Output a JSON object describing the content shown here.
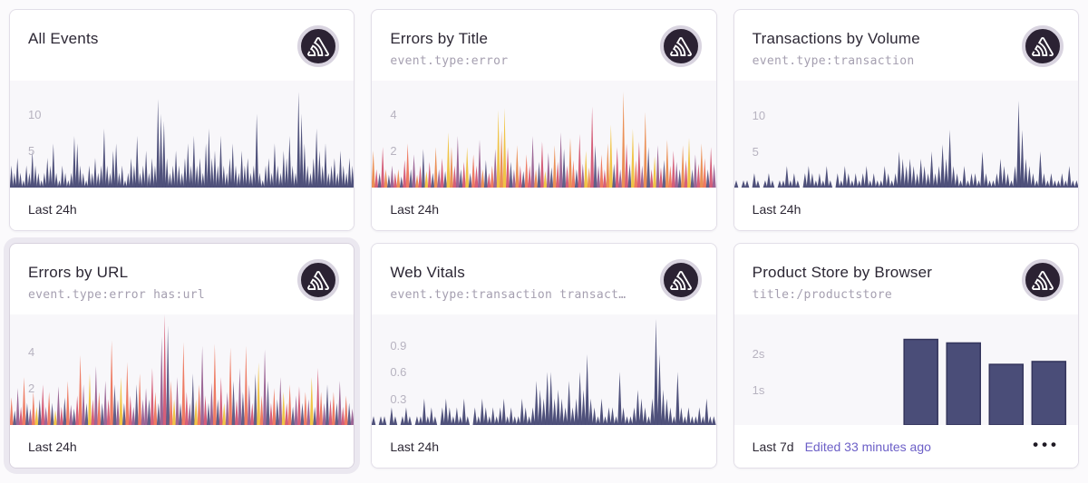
{
  "page": {
    "background": "#fbfafc"
  },
  "theme": {
    "card_bg": "#ffffff",
    "card_border": "#e2dee8",
    "plot_bg": "#f8f7fa",
    "title_color": "#2c2734",
    "subtitle_color": "#a59fb0",
    "tick_color": "#b7b3c0",
    "link_color": "#6c5fc7",
    "badge_bg": "#2b2233",
    "badge_ring": "#d9d4e0",
    "navy": "#464874",
    "highlight_ring": "#ebe8f0",
    "palette": [
      "#e8823f",
      "#cf4a68",
      "#eebd2e",
      "#4b4a78",
      "#8e5287",
      "#ec6a4d"
    ]
  },
  "logo_icon": "sentry-logo-icon",
  "cards": [
    {
      "title": "All Events",
      "subtitle": "",
      "footer": "Last 24h",
      "chart": {
        "type": "spikes",
        "ymax": 14.5,
        "color": "#464874",
        "ticks": [
          {
            "value": 10,
            "label": "10"
          },
          {
            "value": 5,
            "label": "5"
          }
        ],
        "values": [
          3,
          2,
          4,
          2,
          1,
          3,
          2,
          5,
          3,
          2,
          1,
          2,
          4,
          3,
          6,
          2,
          1,
          3,
          2,
          1,
          2,
          7,
          6,
          3,
          2,
          1,
          3,
          2,
          4,
          2,
          3,
          8,
          3,
          2,
          5,
          6,
          2,
          3,
          1,
          2,
          4,
          3,
          7,
          2,
          3,
          5,
          2,
          4,
          3,
          12,
          10,
          9,
          4,
          2,
          3,
          5,
          3,
          2,
          4,
          6,
          3,
          7,
          3,
          4,
          2,
          6,
          8,
          4,
          5,
          3,
          7,
          3,
          2,
          4,
          6,
          3,
          2,
          5,
          3,
          4,
          2,
          3,
          10,
          2,
          1,
          3,
          4,
          2,
          6,
          3,
          2,
          5,
          4,
          7,
          3,
          2,
          13,
          10,
          6,
          3,
          2,
          4,
          8,
          5,
          3,
          6,
          2,
          3,
          4,
          2,
          5,
          3,
          2,
          4,
          3
        ]
      }
    },
    {
      "title": "Errors by Title",
      "subtitle": "event.type:error",
      "footer": "Last 24h",
      "chart": {
        "type": "spikes-multi",
        "ymax": 5.8,
        "ticks": [
          {
            "value": 4,
            "label": "4"
          },
          {
            "value": 2,
            "label": "2"
          }
        ],
        "values": [
          2,
          1,
          0.8,
          2.2,
          1,
          0.7,
          1.2,
          0.8,
          1,
          0.6,
          1.5,
          2.4,
          1,
          1.8,
          0.7,
          1.2,
          2.1,
          0.9,
          1.4,
          0.8,
          2.2,
          1,
          1.6,
          0.9,
          3,
          2.2,
          1.2,
          2.8,
          1,
          1.4,
          2.2,
          0.8,
          1.8,
          1.2,
          2.6,
          1,
          1.5,
          0.8,
          1.2,
          2.1,
          4.2,
          3.1,
          4.3,
          2.2,
          1.4,
          1,
          2.3,
          1.2,
          0.9,
          1.8,
          1.2,
          2.8,
          1,
          1.4,
          2.5,
          0.9,
          1.9,
          1.1,
          2.3,
          1.4,
          3,
          2.1,
          1.2,
          2.7,
          1.5,
          1,
          2.9,
          1.3,
          2,
          1.1,
          4.4,
          2.3,
          1.2,
          1.8,
          1,
          2.4,
          3.4,
          1.3,
          2.2,
          1,
          5.2,
          2.4,
          1.3,
          3.2,
          1.5,
          2.5,
          1.2,
          4.1,
          2.2,
          1,
          1.7,
          2.3,
          1.1,
          1.5,
          2.6,
          1.2,
          2,
          1.4,
          1,
          2.3,
          1.5,
          2.7,
          1,
          1.8,
          1.3,
          2.4,
          1.6,
          1,
          2.2,
          1.3
        ],
        "colors": [
          0,
          1,
          3,
          1,
          0,
          3,
          4,
          1,
          0,
          3,
          1,
          5,
          3,
          4,
          0,
          1,
          3,
          2,
          1,
          3,
          0,
          4,
          1,
          3,
          2,
          0,
          1,
          4,
          3,
          1,
          2,
          3,
          5,
          1,
          4,
          0,
          3,
          1,
          5,
          4,
          2,
          0,
          2,
          1,
          3,
          4,
          0,
          1,
          3,
          5,
          1,
          4,
          0,
          3,
          1,
          2,
          4,
          3,
          0,
          1,
          4,
          3,
          1,
          0,
          5,
          3,
          1,
          4,
          2,
          0,
          1,
          3,
          4,
          5,
          1,
          0,
          2,
          3,
          1,
          4,
          0,
          1,
          3,
          2,
          5,
          1,
          4,
          0,
          3,
          1,
          2,
          4,
          1,
          3,
          0,
          5,
          1,
          4,
          3,
          0,
          1,
          2,
          3,
          4,
          1,
          0,
          5,
          3,
          1,
          4
        ]
      }
    },
    {
      "title": "Transactions by Volume",
      "subtitle": "event.type:transaction",
      "footer": "Last 24h",
      "chart": {
        "type": "spikes",
        "ymax": 14.8,
        "color": "#464874",
        "ticks": [
          {
            "value": 10,
            "label": "10"
          },
          {
            "value": 5,
            "label": "5"
          }
        ],
        "values": [
          1,
          0,
          1,
          1,
          0,
          2,
          1,
          0,
          1,
          2,
          1,
          0,
          1,
          1,
          3,
          1,
          2,
          1,
          0,
          2,
          3,
          2,
          1,
          2,
          1,
          3,
          1,
          0,
          2,
          1,
          3,
          2,
          1,
          2,
          1,
          2,
          3,
          1,
          2,
          1,
          1,
          3,
          2,
          1,
          2,
          5,
          4,
          3,
          4,
          3,
          2,
          4,
          3,
          2,
          5,
          2,
          3,
          6,
          4,
          8,
          3,
          2,
          1,
          3,
          1,
          2,
          2,
          1,
          5,
          2,
          1,
          1,
          2,
          4,
          3,
          2,
          1,
          3,
          12,
          8,
          4,
          3,
          2,
          1,
          5,
          2,
          1,
          2,
          1,
          1,
          2,
          1,
          3,
          1,
          1
        ]
      }
    },
    {
      "title": "Errors by URL",
      "subtitle": "event.type:error has:url",
      "footer": "Last 24h",
      "highlighted": true,
      "chart": {
        "type": "spikes-multi",
        "ymax": 6.0,
        "ticks": [
          {
            "value": 4,
            "label": "4"
          },
          {
            "value": 2,
            "label": "2"
          }
        ],
        "values": [
          1.5,
          0.8,
          2,
          1,
          2.6,
          1.2,
          0.9,
          1.8,
          1,
          1.4,
          2.2,
          1,
          1.8,
          1.2,
          0.8,
          2.1,
          1,
          1.5,
          2.4,
          1.1,
          0.9,
          1.6,
          3.8,
          2.2,
          1.2,
          2.8,
          1.4,
          3.2,
          1.8,
          1.2,
          2.4,
          1.4,
          4.6,
          2.2,
          1.4,
          2.6,
          1.2,
          3.4,
          1.6,
          1,
          2.2,
          2.8,
          1.4,
          2,
          1.4,
          3.1,
          1.8,
          1.2,
          4.8,
          6,
          5.4,
          2.4,
          1.4,
          2.6,
          1.2,
          4.5,
          1.8,
          1.2,
          2.8,
          1.4,
          2.2,
          4.3,
          1.6,
          1.2,
          2.3,
          4.4,
          1.4,
          2.6,
          1.2,
          1.8,
          4.2,
          2.4,
          1.4,
          3.1,
          1.8,
          4.3,
          2.2,
          1.2,
          2.8,
          3.4,
          1.6,
          4.1,
          2.4,
          1.2,
          2,
          1.4,
          2.6,
          1.8,
          1.2,
          2.2,
          1,
          1.6,
          2.1,
          1.2,
          1.8,
          1.4,
          2.6,
          1,
          3.1,
          1.8,
          1.2,
          2.2,
          1.4,
          1.8,
          1.2,
          2.4,
          1,
          1.6,
          1.2,
          0.9
        ],
        "colors": [
          5,
          3,
          4,
          1,
          5,
          3,
          4,
          5,
          2,
          3,
          1,
          4,
          5,
          3,
          2,
          4,
          1,
          3,
          5,
          4,
          3,
          1,
          5,
          4,
          3,
          2,
          1,
          4,
          5,
          3,
          4,
          1,
          5,
          3,
          4,
          2,
          3,
          5,
          1,
          4,
          3,
          5,
          4,
          4,
          3,
          1,
          5,
          3,
          4,
          1,
          3,
          5,
          2,
          4,
          3,
          5,
          1,
          4,
          3,
          2,
          5,
          4,
          1,
          3,
          4,
          5,
          3,
          1,
          2,
          4,
          5,
          3,
          1,
          4,
          3,
          5,
          4,
          1,
          3,
          2,
          5,
          4,
          3,
          1,
          5,
          3,
          4,
          2,
          1,
          5,
          3,
          4,
          1,
          3,
          5,
          4,
          2,
          3,
          1,
          5,
          4,
          3,
          1,
          5,
          3,
          4,
          1,
          5,
          3,
          4
        ]
      }
    },
    {
      "title": "Web Vitals",
      "subtitle": "event.type:transaction transact…",
      "footer": "Last 24h",
      "chart": {
        "type": "spikes",
        "ymax": 1.25,
        "color": "#464874",
        "ticks": [
          {
            "value": 0.9,
            "label": "0.9"
          },
          {
            "value": 0.6,
            "label": "0.6"
          },
          {
            "value": 0.3,
            "label": "0.3"
          }
        ],
        "values": [
          0.1,
          0,
          0.1,
          0.1,
          0,
          0.2,
          0.1,
          0,
          0.1,
          0.2,
          0.1,
          0,
          0.1,
          0.1,
          0.3,
          0.1,
          0.2,
          0.1,
          0,
          0.2,
          0.3,
          0.2,
          0.1,
          0.2,
          0.1,
          0.3,
          0.1,
          0,
          0.2,
          0.1,
          0.3,
          0.2,
          0.1,
          0.2,
          0.1,
          0.2,
          0.3,
          0.1,
          0.2,
          0.1,
          0.1,
          0.3,
          0.2,
          0.1,
          0.2,
          0.5,
          0.4,
          0.3,
          0.6,
          0.6,
          0.3,
          0.4,
          0.3,
          0.2,
          0.5,
          0.2,
          0.3,
          0.6,
          0.4,
          0.8,
          0.3,
          0.2,
          0.1,
          0.3,
          0.1,
          0.2,
          0.2,
          0.1,
          0.6,
          0.2,
          0.1,
          0.1,
          0.2,
          0.4,
          0.3,
          0.2,
          0.1,
          0.3,
          1.2,
          0.8,
          0.4,
          0.3,
          0.2,
          0.1,
          0.6,
          0.2,
          0.1,
          0.2,
          0.1,
          0.1,
          0.2,
          0.1,
          0.3,
          0.1,
          0.1
        ]
      }
    },
    {
      "title": "Product Store by Browser",
      "subtitle": "title:/productstore",
      "footer": "Last 7d",
      "edited_label": "Edited 33 minutes ago",
      "menu_icon": "•••",
      "chart": {
        "type": "bars",
        "ymax": 3.1,
        "color": "#4a4d78",
        "ticks": [
          {
            "value": 2,
            "label": "2s"
          },
          {
            "value": 1,
            "label": "1s"
          }
        ],
        "values": [
          2.4,
          2.3,
          1.7,
          1.78
        ]
      }
    }
  ]
}
